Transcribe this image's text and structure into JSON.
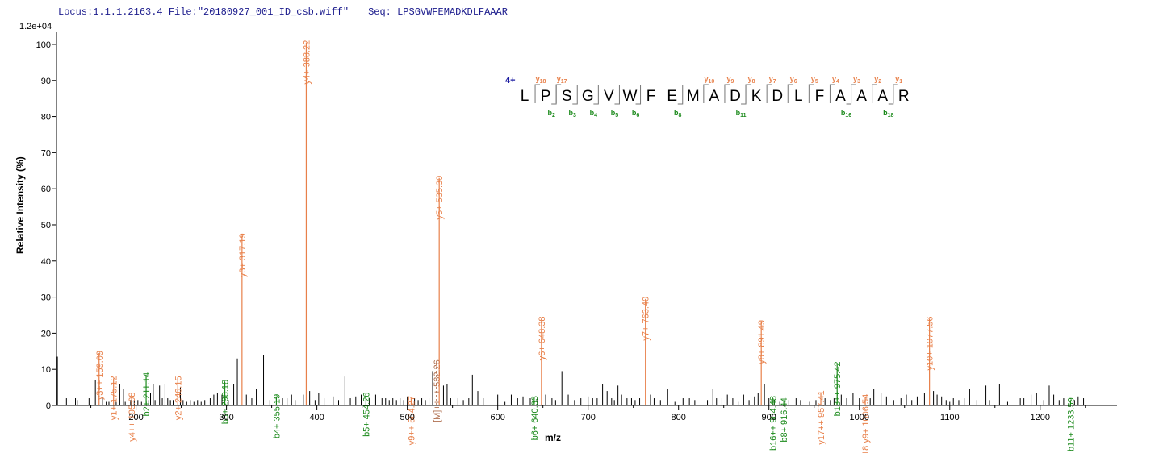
{
  "header": {
    "locus": "Locus:1.1.1.2163.4",
    "file": "File:\"20180927_001_ID_csb.wiff\"",
    "seq": "Seq: LPSGVWFEMADKDLFAAAR"
  },
  "chart_data": {
    "type": "bar",
    "scale_label": "1.2e+04",
    "xlabel": "m/z",
    "ylabel": "Relative   Intensity (%)",
    "xlim": [
      112,
      1285
    ],
    "ylim": [
      0,
      102
    ],
    "xticks": [
      200,
      300,
      400,
      500,
      600,
      700,
      800,
      900,
      1000,
      1100,
      1200
    ],
    "yticks": [
      0,
      10,
      20,
      30,
      40,
      50,
      60,
      70,
      80,
      90,
      100
    ],
    "colors": {
      "y": "#e8804a",
      "b": "#1c8a1c",
      "precursor": "#b07050",
      "noise": "#000000"
    },
    "annotated_peaks": [
      {
        "mz": 159.09,
        "intensity": 14.5,
        "label": "y3++ 159.09",
        "ion": "y"
      },
      {
        "mz": 175.12,
        "intensity": 7.5,
        "label": "y1+ 175.12",
        "ion": "y"
      },
      {
        "mz": 195.08,
        "intensity": 3.0,
        "label": "y4++ 195.08",
        "ion": "y"
      },
      {
        "mz": 211.14,
        "intensity": 8.5,
        "label": "b2+ 211.14",
        "ion": "b"
      },
      {
        "mz": 246.15,
        "intensity": 7.5,
        "label": "y2+ 246.15",
        "ion": "y"
      },
      {
        "mz": 298.18,
        "intensity": 6.5,
        "label": "b3+ 298.18",
        "ion": "b"
      },
      {
        "mz": 317.19,
        "intensity": 47.0,
        "label": "y3+ 317.19",
        "ion": "y"
      },
      {
        "mz": 355.19,
        "intensity": 2.5,
        "label": "b4+ 355.19",
        "ion": "b"
      },
      {
        "mz": 388.22,
        "intensity": 100.5,
        "label": "y4+ 388.22",
        "ion": "y"
      },
      {
        "mz": 454.26,
        "intensity": 3.0,
        "label": "b5+ 454.26",
        "ion": "b"
      },
      {
        "mz": 504.27,
        "intensity": 2.0,
        "label": "y9++ 504.27",
        "ion": "y"
      },
      {
        "mz": 532.26,
        "intensity": 12.0,
        "label": "[M]++++ 532.26",
        "ion": "precursor"
      },
      {
        "mz": 535.3,
        "intensity": 63.0,
        "label": "y5+ 535.30",
        "ion": "y"
      },
      {
        "mz": 640.33,
        "intensity": 2.0,
        "label": "b6+ 640.33",
        "ion": "b"
      },
      {
        "mz": 648.38,
        "intensity": 24.0,
        "label": "y6+ 648.38",
        "ion": "y"
      },
      {
        "mz": 763.4,
        "intensity": 29.5,
        "label": "y7+ 763.40",
        "ion": "y"
      },
      {
        "mz": 891.49,
        "intensity": 23.0,
        "label": "y8+ 891.49",
        "ion": "y"
      },
      {
        "mz": 904.48,
        "intensity": 2.0,
        "label": "b16++ 904.48",
        "ion": "b"
      },
      {
        "mz": 916.44,
        "intensity": 1.5,
        "label": "b8+ 916.44",
        "ion": "b"
      },
      {
        "mz": 957.41,
        "intensity": 3.5,
        "label": "y17++ 957.41",
        "ion": "y"
      },
      {
        "mz": 975.42,
        "intensity": 11.5,
        "label": "b18++ 975.42",
        "ion": "b"
      },
      {
        "mz": 1006.54,
        "intensity": 2.5,
        "label": "y18 y9+ 1006.54",
        "ion": "y"
      },
      {
        "mz": 1077.56,
        "intensity": 24.0,
        "label": "y10+ 1077.56",
        "ion": "y"
      },
      {
        "mz": 1233.59,
        "intensity": 1.5,
        "label": "b11+ 1233.59",
        "ion": "b"
      }
    ],
    "unannotated_peaks": [
      [
        113,
        13.5
      ],
      [
        123,
        2
      ],
      [
        133,
        2
      ],
      [
        135,
        1.5
      ],
      [
        148,
        2
      ],
      [
        155,
        7
      ],
      [
        163,
        2
      ],
      [
        167,
        1
      ],
      [
        170,
        1
      ],
      [
        178,
        1.5
      ],
      [
        182,
        6
      ],
      [
        186,
        4.5
      ],
      [
        188,
        1
      ],
      [
        194,
        1.5
      ],
      [
        198,
        1.5
      ],
      [
        202,
        1.5
      ],
      [
        206,
        1
      ],
      [
        214,
        1.5
      ],
      [
        216,
        3.5
      ],
      [
        219,
        6
      ],
      [
        221,
        1.5
      ],
      [
        226,
        5.5
      ],
      [
        229,
        2
      ],
      [
        232,
        6
      ],
      [
        235,
        2
      ],
      [
        238,
        1.5
      ],
      [
        241,
        1.5
      ],
      [
        249,
        5
      ],
      [
        252,
        1.5
      ],
      [
        256,
        1
      ],
      [
        260,
        1.5
      ],
      [
        264,
        1
      ],
      [
        268,
        1.5
      ],
      [
        272,
        1
      ],
      [
        276,
        1.5
      ],
      [
        282,
        2
      ],
      [
        286,
        3
      ],
      [
        290,
        3.5
      ],
      [
        295,
        3
      ],
      [
        302,
        1.5
      ],
      [
        308,
        6
      ],
      [
        312,
        13
      ],
      [
        322,
        3
      ],
      [
        328,
        2
      ],
      [
        333,
        4.5
      ],
      [
        341,
        14
      ],
      [
        348,
        1.5
      ],
      [
        362,
        2
      ],
      [
        367,
        2
      ],
      [
        372,
        3
      ],
      [
        376,
        1.5
      ],
      [
        385,
        3
      ],
      [
        392,
        4
      ],
      [
        398,
        1.5
      ],
      [
        402,
        3.5
      ],
      [
        408,
        2
      ],
      [
        418,
        2.5
      ],
      [
        424,
        1.5
      ],
      [
        431,
        8
      ],
      [
        437,
        2
      ],
      [
        443,
        2.5
      ],
      [
        449,
        3
      ],
      [
        458,
        2
      ],
      [
        465,
        3
      ],
      [
        472,
        2
      ],
      [
        476,
        2
      ],
      [
        480,
        1.5
      ],
      [
        484,
        2
      ],
      [
        488,
        1.5
      ],
      [
        492,
        2
      ],
      [
        496,
        1.5
      ],
      [
        500,
        2.5
      ],
      [
        508,
        2
      ],
      [
        512,
        1.5
      ],
      [
        516,
        2
      ],
      [
        520,
        1.5
      ],
      [
        524,
        2
      ],
      [
        528,
        9.5
      ],
      [
        540,
        5.5
      ],
      [
        544,
        6
      ],
      [
        548,
        2
      ],
      [
        556,
        2
      ],
      [
        562,
        1.5
      ],
      [
        568,
        2
      ],
      [
        572,
        8.5
      ],
      [
        578,
        4
      ],
      [
        584,
        2
      ],
      [
        600,
        3
      ],
      [
        608,
        1
      ],
      [
        615,
        3
      ],
      [
        622,
        2
      ],
      [
        628,
        2.5
      ],
      [
        636,
        2
      ],
      [
        644,
        2
      ],
      [
        653,
        3
      ],
      [
        660,
        2
      ],
      [
        664,
        1.5
      ],
      [
        671,
        9.5
      ],
      [
        678,
        3
      ],
      [
        685,
        1.5
      ],
      [
        692,
        2
      ],
      [
        700,
        2.5
      ],
      [
        705,
        2
      ],
      [
        710,
        2
      ],
      [
        716,
        6
      ],
      [
        721,
        4
      ],
      [
        726,
        2
      ],
      [
        729,
        1.5
      ],
      [
        733,
        5.5
      ],
      [
        737,
        3
      ],
      [
        743,
        2
      ],
      [
        748,
        2
      ],
      [
        752,
        1.5
      ],
      [
        757,
        2
      ],
      [
        769,
        3
      ],
      [
        773,
        2
      ],
      [
        780,
        1.5
      ],
      [
        788,
        4.5
      ],
      [
        796,
        1
      ],
      [
        805,
        2
      ],
      [
        812,
        2
      ],
      [
        818,
        1.5
      ],
      [
        832,
        1.5
      ],
      [
        838,
        4.5
      ],
      [
        842,
        2
      ],
      [
        848,
        2
      ],
      [
        854,
        3
      ],
      [
        860,
        2
      ],
      [
        866,
        1
      ],
      [
        872,
        3
      ],
      [
        878,
        1.5
      ],
      [
        884,
        2.5
      ],
      [
        888,
        3.5
      ],
      [
        895,
        6
      ],
      [
        900,
        2
      ],
      [
        906,
        1.5
      ],
      [
        912,
        1
      ],
      [
        922,
        1.5
      ],
      [
        930,
        2
      ],
      [
        935,
        1.5
      ],
      [
        945,
        1
      ],
      [
        952,
        1.5
      ],
      [
        962,
        2
      ],
      [
        968,
        1.5
      ],
      [
        972,
        2
      ],
      [
        980,
        3
      ],
      [
        986,
        2
      ],
      [
        993,
        3.5
      ],
      [
        1000,
        2
      ],
      [
        1012,
        2
      ],
      [
        1016,
        4.5
      ],
      [
        1024,
        3.5
      ],
      [
        1030,
        2.5
      ],
      [
        1038,
        1.5
      ],
      [
        1046,
        2
      ],
      [
        1052,
        3
      ],
      [
        1058,
        1.5
      ],
      [
        1064,
        2.5
      ],
      [
        1072,
        3.5
      ],
      [
        1082,
        4
      ],
      [
        1086,
        3
      ],
      [
        1091,
        2.5
      ],
      [
        1096,
        1.5
      ],
      [
        1100,
        1
      ],
      [
        1104,
        2
      ],
      [
        1110,
        1.5
      ],
      [
        1116,
        2
      ],
      [
        1122,
        4.5
      ],
      [
        1130,
        1.5
      ],
      [
        1140,
        5.5
      ],
      [
        1144,
        1.5
      ],
      [
        1155,
        6
      ],
      [
        1164,
        1
      ],
      [
        1178,
        2
      ],
      [
        1182,
        2
      ],
      [
        1190,
        3
      ],
      [
        1196,
        3.5
      ],
      [
        1204,
        1.5
      ],
      [
        1210,
        5.5
      ],
      [
        1215,
        3
      ],
      [
        1221,
        1.5
      ],
      [
        1226,
        2
      ],
      [
        1238,
        1.5
      ],
      [
        1242,
        2.5
      ],
      [
        1248,
        2
      ]
    ],
    "annotation": {
      "charge": "4+",
      "sequence": [
        "L",
        "P",
        "S",
        "G",
        "V",
        "W",
        "F",
        "E",
        "M",
        "A",
        "D",
        "K",
        "D",
        "L",
        "F",
        "A",
        "A",
        "A",
        "R"
      ],
      "y_ions": [
        {
          "after": 1,
          "label": "y",
          "n": "18"
        },
        {
          "after": 2,
          "label": "y",
          "n": "17"
        },
        {
          "after": 9,
          "label": "y",
          "n": "10"
        },
        {
          "after": 10,
          "label": "y",
          "n": "9"
        },
        {
          "after": 11,
          "label": "y",
          "n": "8"
        },
        {
          "after": 12,
          "label": "y",
          "n": "7"
        },
        {
          "after": 13,
          "label": "y",
          "n": "6"
        },
        {
          "after": 14,
          "label": "y",
          "n": "5"
        },
        {
          "after": 15,
          "label": "y",
          "n": "4"
        },
        {
          "after": 16,
          "label": "y",
          "n": "3"
        },
        {
          "after": 17,
          "label": "y",
          "n": "2"
        },
        {
          "after": 18,
          "label": "y",
          "n": "1"
        }
      ],
      "b_ions": [
        {
          "after": 2,
          "label": "b",
          "n": "2"
        },
        {
          "after": 3,
          "label": "b",
          "n": "3"
        },
        {
          "after": 4,
          "label": "b",
          "n": "4"
        },
        {
          "after": 5,
          "label": "b",
          "n": "5"
        },
        {
          "after": 6,
          "label": "b",
          "n": "6"
        },
        {
          "after": 8,
          "label": "b",
          "n": "8"
        },
        {
          "after": 11,
          "label": "b",
          "n": "11"
        },
        {
          "after": 16,
          "label": "b",
          "n": "16"
        },
        {
          "after": 18,
          "label": "b",
          "n": "18"
        }
      ]
    }
  }
}
